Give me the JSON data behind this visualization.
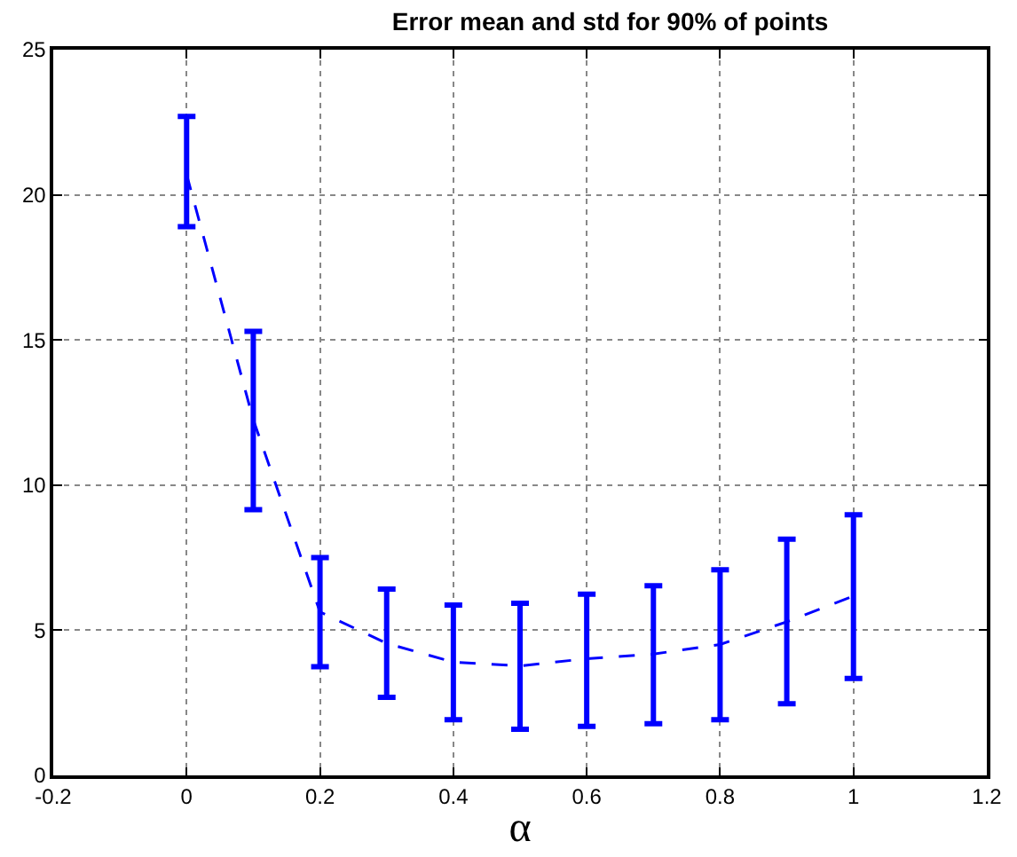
{
  "chart_data": {
    "type": "line",
    "title": "Error mean and std for 90% of points",
    "xlabel": "α",
    "x": [
      0,
      0.1,
      0.2,
      0.3,
      0.4,
      0.5,
      0.6,
      0.7,
      0.8,
      0.9,
      1.0
    ],
    "series": [
      {
        "color": "#0000ff",
        "values": [
          20.7,
          12.25,
          5.63,
          4.55,
          3.9,
          3.77,
          4.02,
          4.18,
          4.51,
          5.29,
          6.18
        ],
        "errors": [
          [
            18.9,
            22.7
          ],
          [
            9.15,
            15.3
          ],
          [
            3.74,
            7.5
          ],
          [
            2.69,
            6.42
          ],
          [
            1.92,
            5.87
          ],
          [
            1.59,
            5.93
          ],
          [
            1.69,
            6.24
          ],
          [
            1.78,
            6.53
          ],
          [
            1.92,
            7.08
          ],
          [
            2.47,
            8.14
          ],
          [
            3.34,
            8.98
          ]
        ]
      }
    ],
    "xlim": [
      -0.2,
      1.2
    ],
    "xticks": [
      {
        "value": -0.2,
        "label": "-0.2"
      },
      0,
      0.2,
      0.4,
      0.6,
      0.8,
      1,
      1.2
    ],
    "ylim": [
      0,
      25
    ],
    "yticks": [
      0,
      5,
      10,
      15,
      20,
      25
    ],
    "grid": true,
    "line_style": "dashed",
    "marker": "none"
  }
}
